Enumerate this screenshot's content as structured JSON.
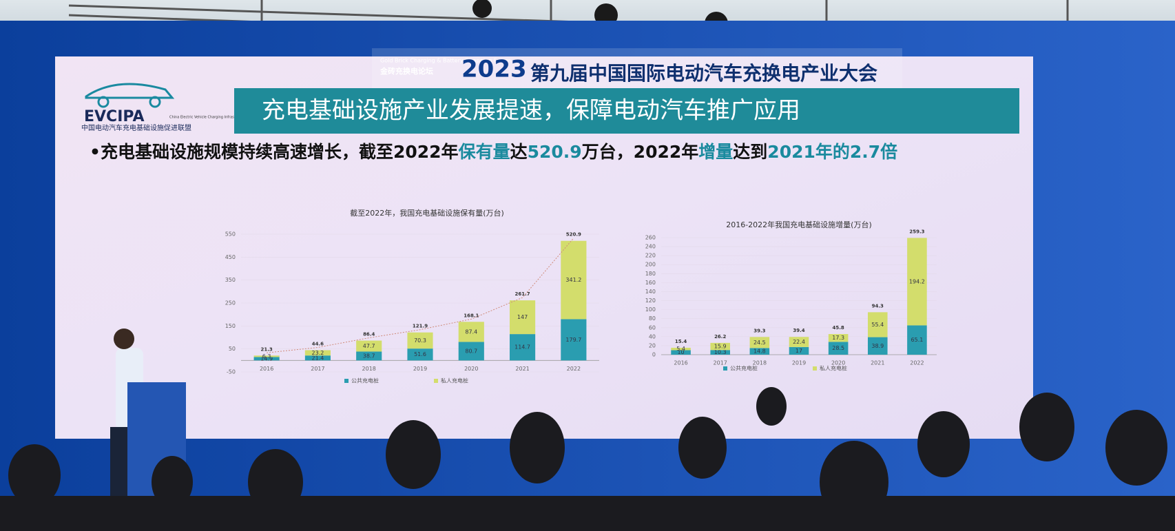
{
  "event": {
    "year": "2023",
    "title": "第九届中国国际电动汽车充换电产业大会",
    "forum_en": "Gold Brick Charging & Battery Swapping Forum",
    "forum_cn": "金砖充换电论坛"
  },
  "logo": {
    "name": "EVCIPA",
    "en": "China Electric Vehicle Charging Infrastructure Promotion Alliance",
    "cn": "中国电动汽车充电基础设施促进联盟"
  },
  "slide": {
    "heading": "充电基础设施产业发展提速，保障电动汽车推广应用",
    "bullet_parts": [
      "•充电基础设施规模持续高速增长，截至2022年",
      "保有量",
      "达",
      "520.9",
      "万台，2022年",
      "增量",
      "达到",
      "2021年的2.7倍"
    ]
  },
  "chart_data": [
    {
      "type": "bar",
      "stacked": true,
      "title": "截至2022年，我国充电基础设施保有量(万台)",
      "categories": [
        "2016",
        "2017",
        "2018",
        "2019",
        "2020",
        "2021",
        "2022"
      ],
      "series": [
        {
          "name": "公共充电桩",
          "color": "#2a9db0",
          "values": [
            14.9,
            21.4,
            38.7,
            51.6,
            80.7,
            114.7,
            179.7
          ]
        },
        {
          "name": "私人充电桩",
          "color": "#d3dd6c",
          "values": [
            6.3,
            23.2,
            47.7,
            70.3,
            87.4,
            147.0,
            341.2
          ]
        }
      ],
      "totals": [
        21.3,
        44.6,
        86.4,
        121.9,
        168.1,
        261.7,
        520.9
      ],
      "ylim": [
        -50,
        550
      ],
      "yticks": [
        -50,
        50,
        150,
        250,
        350,
        450,
        550
      ],
      "trendline": true
    },
    {
      "type": "bar",
      "stacked": true,
      "title": "2016-2022年我国充电基础设施增量(万台)",
      "categories": [
        "2016",
        "2017",
        "2018",
        "2019",
        "2020",
        "2021",
        "2022"
      ],
      "series": [
        {
          "name": "公共充电桩",
          "color": "#2a9db0",
          "values": [
            10.0,
            10.3,
            14.8,
            17.0,
            28.5,
            38.9,
            65.1
          ]
        },
        {
          "name": "私人充电桩",
          "color": "#d3dd6c",
          "values": [
            5.4,
            15.9,
            24.5,
            22.4,
            17.3,
            55.4,
            194.2
          ]
        }
      ],
      "totals": [
        15.4,
        26.2,
        39.3,
        39.4,
        45.8,
        94.3,
        259.3
      ],
      "ylim": [
        0,
        260
      ],
      "yticks": [
        0,
        20,
        40,
        60,
        80,
        100,
        120,
        140,
        160,
        180,
        200,
        220,
        240,
        260
      ],
      "trendline": false
    }
  ]
}
